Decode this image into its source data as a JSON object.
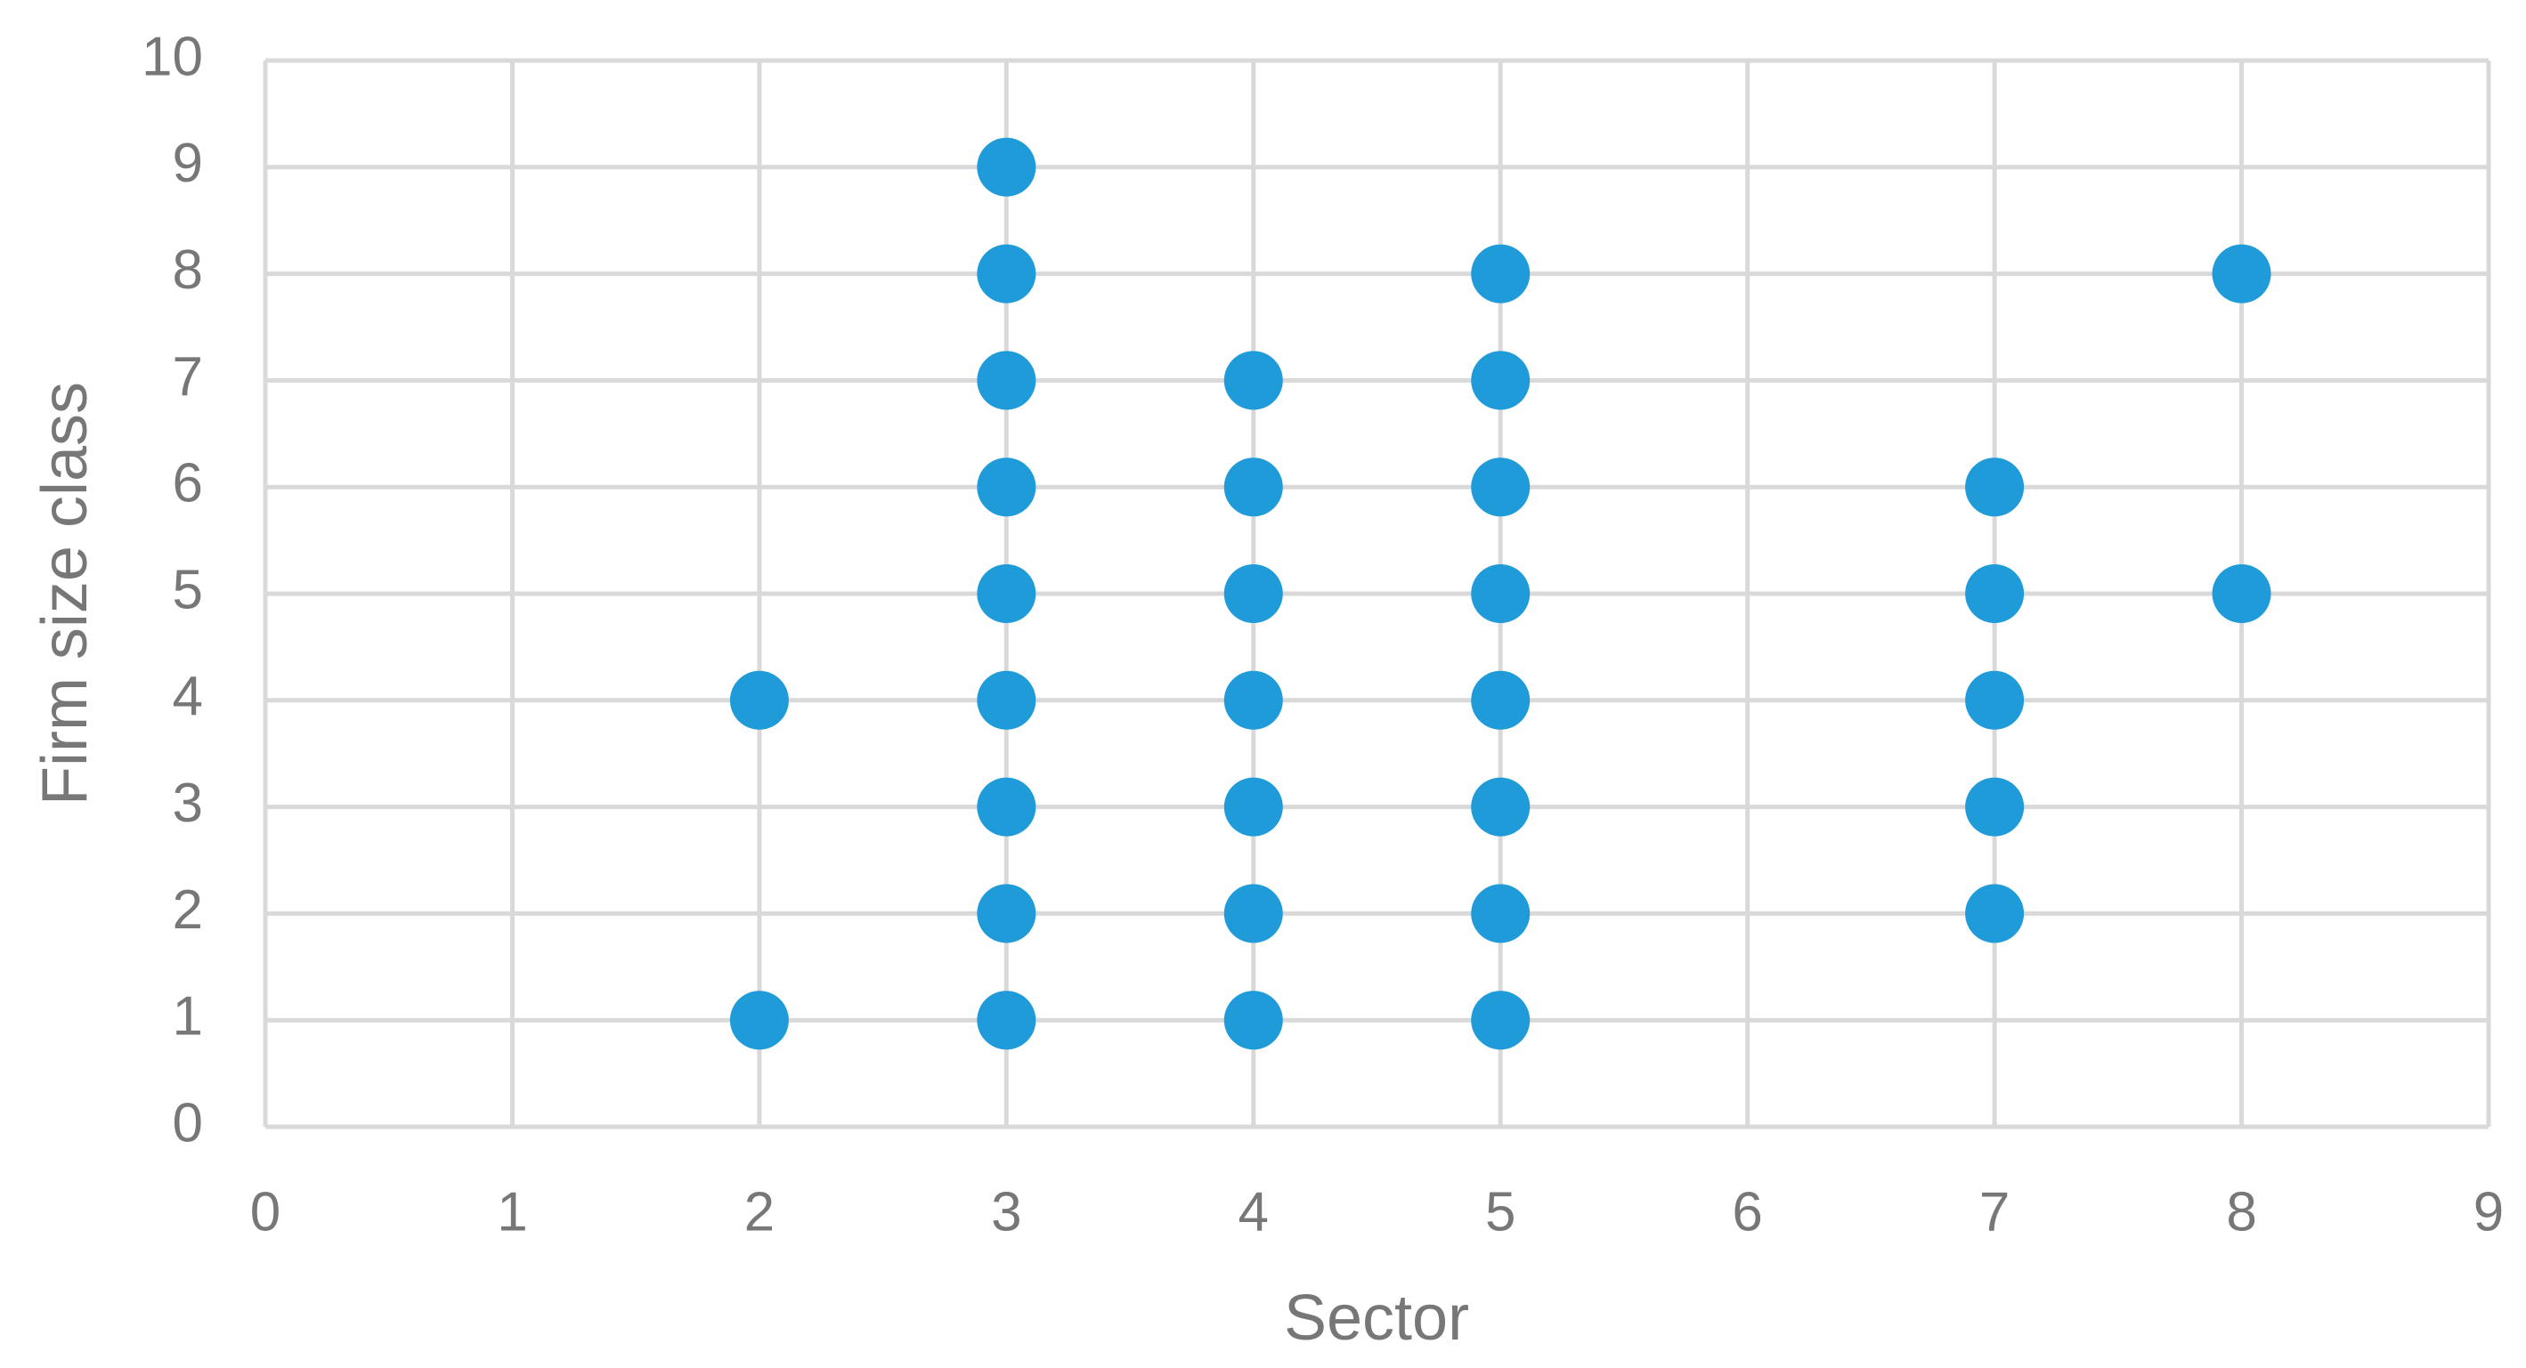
{
  "chart_data": {
    "type": "scatter",
    "x_label": "Sector",
    "y_label": "Firm size class",
    "x": [
      2,
      2,
      3,
      3,
      3,
      3,
      3,
      3,
      3,
      3,
      3,
      4,
      4,
      4,
      4,
      4,
      4,
      4,
      5,
      5,
      5,
      5,
      5,
      5,
      5,
      5,
      7,
      7,
      7,
      7,
      7,
      8,
      8
    ],
    "values": [
      1,
      4,
      1,
      2,
      3,
      4,
      5,
      6,
      7,
      8,
      9,
      1,
      2,
      3,
      4,
      5,
      6,
      7,
      1,
      2,
      3,
      4,
      5,
      6,
      7,
      8,
      2,
      3,
      4,
      5,
      6,
      5,
      8
    ],
    "color": "#1f9bd9",
    "xlim": [
      0,
      9
    ],
    "xticks": [
      0,
      1,
      2,
      3,
      4,
      5,
      6,
      7,
      8,
      9
    ],
    "ylim": [
      0,
      10
    ],
    "yticks": [
      0,
      1,
      2,
      3,
      4,
      5,
      6,
      7,
      8,
      9,
      10
    ],
    "grid": true
  }
}
